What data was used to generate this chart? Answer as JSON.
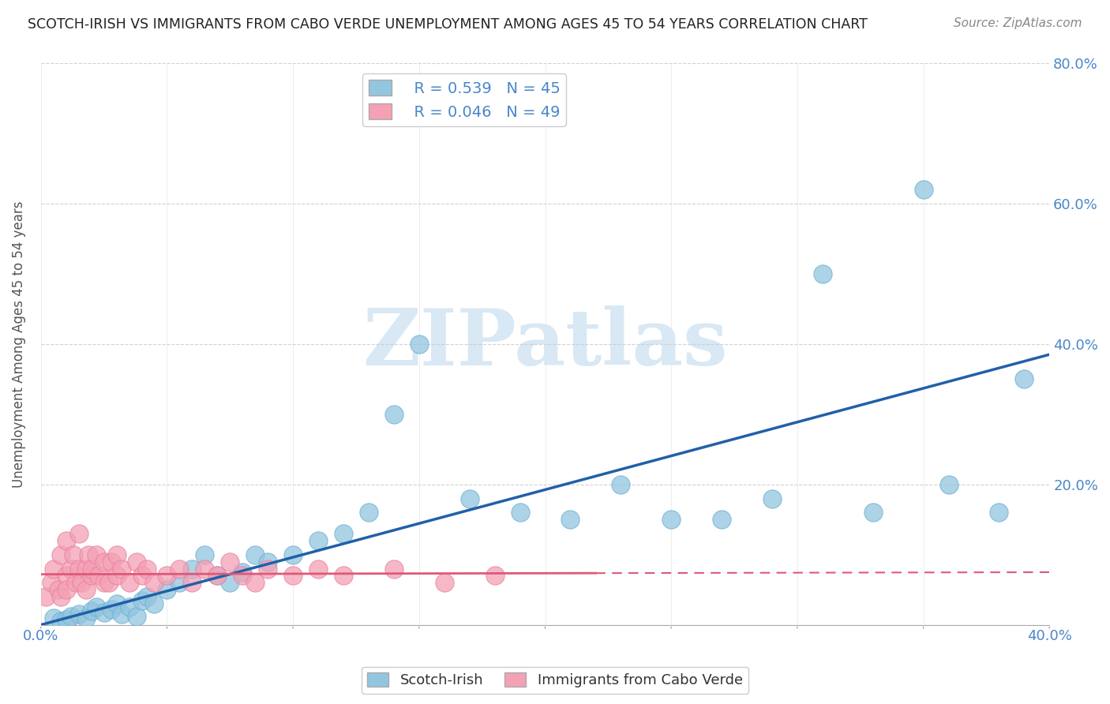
{
  "title": "SCOTCH-IRISH VS IMMIGRANTS FROM CABO VERDE UNEMPLOYMENT AMONG AGES 45 TO 54 YEARS CORRELATION CHART",
  "source": "Source: ZipAtlas.com",
  "ylabel": "Unemployment Among Ages 45 to 54 years",
  "xlabel": "",
  "xlim": [
    0.0,
    0.4
  ],
  "ylim": [
    0.0,
    0.8
  ],
  "xticks": [
    0.0,
    0.05,
    0.1,
    0.15,
    0.2,
    0.25,
    0.3,
    0.35,
    0.4
  ],
  "yticks": [
    0.0,
    0.2,
    0.4,
    0.6,
    0.8
  ],
  "ytick_labels_right": [
    "",
    "20.0%",
    "40.0%",
    "60.0%",
    "80.0%"
  ],
  "xtick_labels": [
    "0.0%",
    "",
    "",
    "",
    "",
    "",
    "",
    "",
    "40.0%"
  ],
  "series1_label": "Scotch-Irish",
  "series1_color": "#92c5de",
  "series1_edge": "#6aafd4",
  "series1_R": 0.539,
  "series1_N": 45,
  "series2_label": "Immigrants from Cabo Verde",
  "series2_color": "#f4a0b5",
  "series2_edge": "#e87fa0",
  "series2_R": 0.046,
  "series2_N": 49,
  "trend1_color": "#2060a8",
  "trend2_color": "#e05878",
  "background_color": "#ffffff",
  "watermark_text": "ZIPatlas",
  "watermark_color": "#d8e8f4",
  "series1_x": [
    0.005,
    0.008,
    0.01,
    0.012,
    0.015,
    0.018,
    0.02,
    0.022,
    0.025,
    0.028,
    0.03,
    0.032,
    0.035,
    0.038,
    0.04,
    0.042,
    0.045,
    0.05,
    0.055,
    0.06,
    0.065,
    0.07,
    0.075,
    0.08,
    0.085,
    0.09,
    0.1,
    0.11,
    0.12,
    0.13,
    0.14,
    0.15,
    0.17,
    0.19,
    0.21,
    0.23,
    0.25,
    0.27,
    0.29,
    0.31,
    0.33,
    0.35,
    0.36,
    0.38,
    0.39
  ],
  "series1_y": [
    0.01,
    0.005,
    0.008,
    0.012,
    0.015,
    0.01,
    0.02,
    0.025,
    0.018,
    0.022,
    0.03,
    0.015,
    0.025,
    0.012,
    0.035,
    0.04,
    0.03,
    0.05,
    0.06,
    0.08,
    0.1,
    0.07,
    0.06,
    0.075,
    0.1,
    0.09,
    0.1,
    0.12,
    0.13,
    0.16,
    0.3,
    0.4,
    0.18,
    0.16,
    0.15,
    0.2,
    0.15,
    0.15,
    0.18,
    0.5,
    0.16,
    0.62,
    0.2,
    0.16,
    0.35
  ],
  "series2_x": [
    0.002,
    0.004,
    0.005,
    0.007,
    0.008,
    0.008,
    0.01,
    0.01,
    0.01,
    0.012,
    0.013,
    0.014,
    0.015,
    0.015,
    0.016,
    0.018,
    0.018,
    0.019,
    0.02,
    0.02,
    0.022,
    0.023,
    0.025,
    0.025,
    0.027,
    0.028,
    0.03,
    0.03,
    0.032,
    0.035,
    0.038,
    0.04,
    0.042,
    0.045,
    0.05,
    0.055,
    0.06,
    0.065,
    0.07,
    0.075,
    0.08,
    0.085,
    0.09,
    0.1,
    0.11,
    0.12,
    0.14,
    0.16,
    0.18
  ],
  "series2_y": [
    0.04,
    0.06,
    0.08,
    0.05,
    0.1,
    0.04,
    0.07,
    0.12,
    0.05,
    0.08,
    0.1,
    0.06,
    0.08,
    0.13,
    0.06,
    0.08,
    0.05,
    0.1,
    0.07,
    0.08,
    0.1,
    0.07,
    0.06,
    0.09,
    0.06,
    0.09,
    0.07,
    0.1,
    0.08,
    0.06,
    0.09,
    0.07,
    0.08,
    0.06,
    0.07,
    0.08,
    0.06,
    0.08,
    0.07,
    0.09,
    0.07,
    0.06,
    0.08,
    0.07,
    0.08,
    0.07,
    0.08,
    0.06,
    0.07
  ],
  "trend1_x0": 0.0,
  "trend1_y0": 0.0,
  "trend1_x1": 0.4,
  "trend1_y1": 0.385,
  "trend2_x0": 0.0,
  "trend2_y0": 0.072,
  "trend2_x1": 0.4,
  "trend2_y1": 0.075,
  "trend2_solid_end": 0.22
}
